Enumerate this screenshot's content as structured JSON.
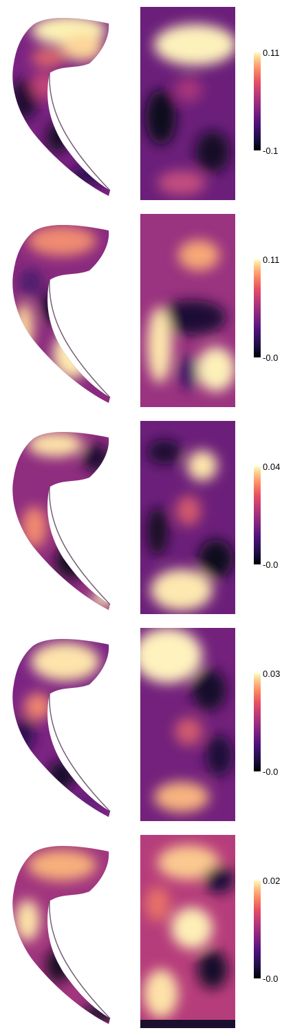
{
  "panels": [
    {
      "max_label": "0.11",
      "min_label": "-0.1"
    },
    {
      "max_label": "0.11",
      "min_label": "-0.0"
    },
    {
      "max_label": "0.04",
      "min_label": "-0.0"
    },
    {
      "max_label": "0.03",
      "min_label": "-0.0"
    },
    {
      "max_label": "0.02",
      "min_label": "-0.0"
    }
  ],
  "colormap": [
    "#000004",
    "#3b0f70",
    "#8c2981",
    "#de4968",
    "#fe9f6d",
    "#fcfdbf"
  ]
}
